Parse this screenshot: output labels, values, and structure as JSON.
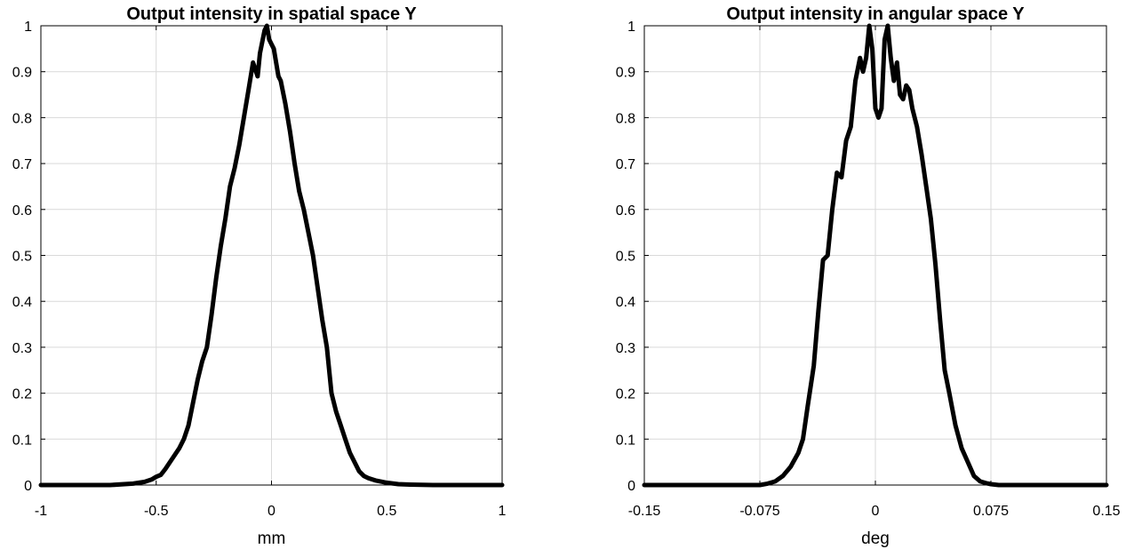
{
  "chart_data": [
    {
      "type": "line",
      "title": "Output intensity in spatial space Y",
      "xlabel": "mm",
      "ylabel": "",
      "xlim": [
        -1,
        1
      ],
      "ylim": [
        0,
        1
      ],
      "xticks": [
        -1,
        -0.5,
        0,
        0.5,
        1
      ],
      "xtick_labels": [
        "-1",
        "-0.5",
        "0",
        "0.5",
        "1"
      ],
      "yticks": [
        0,
        0.1,
        0.2,
        0.3,
        0.4,
        0.5,
        0.6,
        0.7,
        0.8,
        0.9,
        1
      ],
      "ytick_labels": [
        "0",
        "0.1",
        "0.2",
        "0.3",
        "0.4",
        "0.5",
        "0.6",
        "0.7",
        "0.8",
        "0.9",
        "1"
      ],
      "grid": true,
      "line_color": "#000000",
      "x": [
        -1,
        -0.8,
        -0.7,
        -0.6,
        -0.55,
        -0.52,
        -0.5,
        -0.48,
        -0.46,
        -0.44,
        -0.42,
        -0.4,
        -0.38,
        -0.36,
        -0.34,
        -0.32,
        -0.3,
        -0.28,
        -0.26,
        -0.24,
        -0.22,
        -0.2,
        -0.18,
        -0.16,
        -0.14,
        -0.12,
        -0.1,
        -0.08,
        -0.06,
        -0.05,
        -0.03,
        -0.02,
        -0.01,
        0,
        0.01,
        0.02,
        0.03,
        0.04,
        0.06,
        0.08,
        0.1,
        0.12,
        0.14,
        0.16,
        0.18,
        0.2,
        0.22,
        0.24,
        0.26,
        0.28,
        0.3,
        0.32,
        0.34,
        0.36,
        0.38,
        0.4,
        0.42,
        0.45,
        0.5,
        0.55,
        0.6,
        0.7,
        1
      ],
      "values": [
        0,
        0,
        0,
        0.003,
        0.007,
        0.012,
        0.018,
        0.022,
        0.035,
        0.05,
        0.065,
        0.08,
        0.1,
        0.13,
        0.18,
        0.23,
        0.27,
        0.3,
        0.37,
        0.45,
        0.52,
        0.58,
        0.65,
        0.69,
        0.74,
        0.8,
        0.86,
        0.92,
        0.89,
        0.94,
        0.99,
        1.0,
        0.97,
        0.96,
        0.95,
        0.92,
        0.89,
        0.88,
        0.83,
        0.77,
        0.7,
        0.64,
        0.6,
        0.55,
        0.5,
        0.43,
        0.36,
        0.3,
        0.2,
        0.16,
        0.13,
        0.1,
        0.07,
        0.05,
        0.03,
        0.02,
        0.015,
        0.01,
        0.005,
        0.002,
        0.001,
        0,
        0
      ]
    },
    {
      "type": "line",
      "title": "Output intensity in angular space Y",
      "xlabel": "deg",
      "ylabel": "",
      "xlim": [
        -0.15,
        0.15
      ],
      "ylim": [
        0,
        1
      ],
      "xticks": [
        -0.15,
        -0.075,
        0,
        0.075,
        0.15
      ],
      "xtick_labels": [
        "-0.15",
        "-0.075",
        "0",
        "0.075",
        "0.15"
      ],
      "yticks": [
        0,
        0.1,
        0.2,
        0.3,
        0.4,
        0.5,
        0.6,
        0.7,
        0.8,
        0.9,
        1
      ],
      "ytick_labels": [
        "0",
        "0.1",
        "0.2",
        "0.3",
        "0.4",
        "0.5",
        "0.6",
        "0.7",
        "0.8",
        "0.9",
        "1"
      ],
      "grid": true,
      "line_color": "#000000",
      "x": [
        -0.15,
        -0.075,
        -0.07,
        -0.065,
        -0.06,
        -0.055,
        -0.05,
        -0.047,
        -0.044,
        -0.04,
        -0.037,
        -0.034,
        -0.031,
        -0.028,
        -0.025,
        -0.022,
        -0.019,
        -0.016,
        -0.013,
        -0.01,
        -0.008,
        -0.006,
        -0.004,
        -0.002,
        0,
        0.002,
        0.004,
        0.006,
        0.008,
        0.01,
        0.012,
        0.014,
        0.016,
        0.018,
        0.02,
        0.022,
        0.024,
        0.027,
        0.03,
        0.033,
        0.036,
        0.039,
        0.042,
        0.045,
        0.048,
        0.052,
        0.056,
        0.06,
        0.064,
        0.068,
        0.072,
        0.075,
        0.08,
        0.15
      ],
      "values": [
        0,
        0,
        0.003,
        0.008,
        0.02,
        0.04,
        0.07,
        0.1,
        0.17,
        0.26,
        0.38,
        0.49,
        0.5,
        0.6,
        0.68,
        0.67,
        0.75,
        0.78,
        0.88,
        0.93,
        0.9,
        0.93,
        1.0,
        0.95,
        0.82,
        0.8,
        0.82,
        0.97,
        1.0,
        0.93,
        0.88,
        0.92,
        0.85,
        0.84,
        0.87,
        0.86,
        0.82,
        0.78,
        0.72,
        0.65,
        0.58,
        0.48,
        0.36,
        0.25,
        0.2,
        0.13,
        0.08,
        0.05,
        0.02,
        0.008,
        0.004,
        0.002,
        0,
        0
      ]
    }
  ]
}
